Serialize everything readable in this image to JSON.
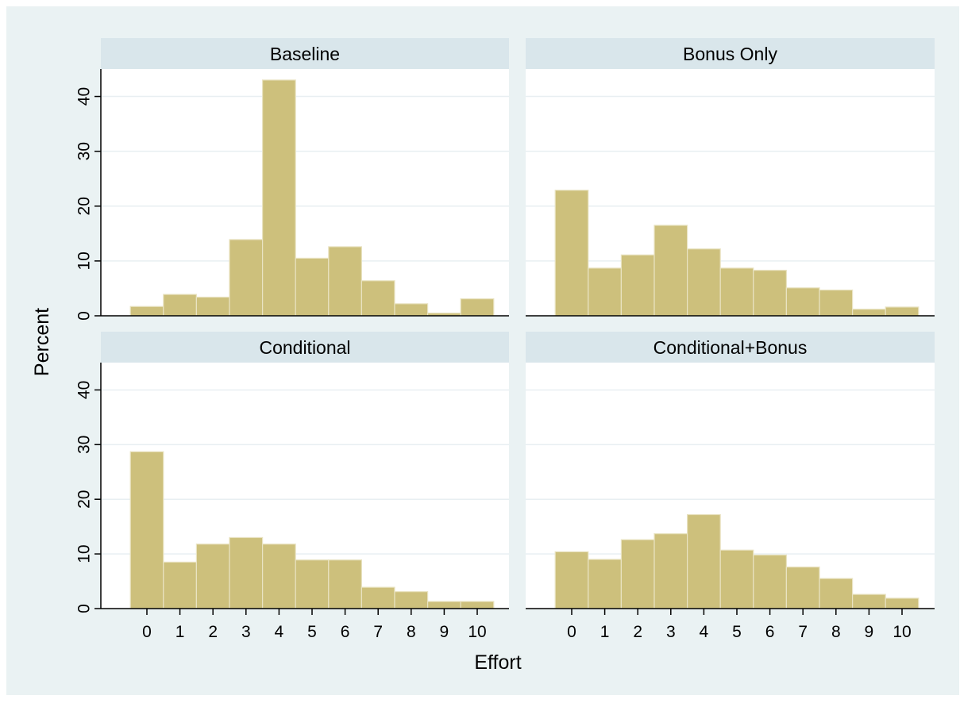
{
  "figure": {
    "ylabel": "Percent",
    "xlabel": "Effort",
    "background_color": "#eaf2f3",
    "plot_background_color": "#ffffff",
    "strip_color": "#d9e6eb",
    "bar_fill": "#cdc07c",
    "bar_stroke": "#e9e3c2",
    "grid_color": "#e8eff2"
  },
  "chart_data": [
    {
      "type": "bar",
      "title": "Baseline",
      "categories": [
        "0",
        "1",
        "2",
        "3",
        "4",
        "5",
        "6",
        "7",
        "8",
        "9",
        "10"
      ],
      "values": [
        1.7,
        3.9,
        3.4,
        13.9,
        43.0,
        10.5,
        12.6,
        6.4,
        2.2,
        0.5,
        3.1
      ],
      "ylim": [
        0,
        45
      ],
      "yticks": [
        0,
        10,
        20,
        30,
        40
      ],
      "grid": true
    },
    {
      "type": "bar",
      "title": "Bonus Only",
      "categories": [
        "0",
        "1",
        "2",
        "3",
        "4",
        "5",
        "6",
        "7",
        "8",
        "9",
        "10"
      ],
      "values": [
        22.9,
        8.7,
        11.1,
        16.5,
        12.2,
        8.7,
        8.3,
        5.1,
        4.7,
        1.2,
        1.6
      ],
      "ylim": [
        0,
        45
      ],
      "yticks": [
        0,
        10,
        20,
        30,
        40
      ],
      "grid": true
    },
    {
      "type": "bar",
      "title": "Conditional",
      "categories": [
        "0",
        "1",
        "2",
        "3",
        "4",
        "5",
        "6",
        "7",
        "8",
        "9",
        "10"
      ],
      "values": [
        28.7,
        8.5,
        11.8,
        13.0,
        11.8,
        8.9,
        8.9,
        3.9,
        3.1,
        1.3,
        1.3
      ],
      "ylim": [
        0,
        45
      ],
      "yticks": [
        0,
        10,
        20,
        30,
        40
      ],
      "grid": true
    },
    {
      "type": "bar",
      "title": "Conditional+Bonus",
      "categories": [
        "0",
        "1",
        "2",
        "3",
        "4",
        "5",
        "6",
        "7",
        "8",
        "9",
        "10"
      ],
      "values": [
        10.4,
        9.0,
        12.6,
        13.7,
        17.2,
        10.7,
        9.8,
        7.6,
        5.5,
        2.6,
        1.9
      ],
      "ylim": [
        0,
        45
      ],
      "yticks": [
        0,
        10,
        20,
        30,
        40
      ],
      "grid": true
    }
  ]
}
